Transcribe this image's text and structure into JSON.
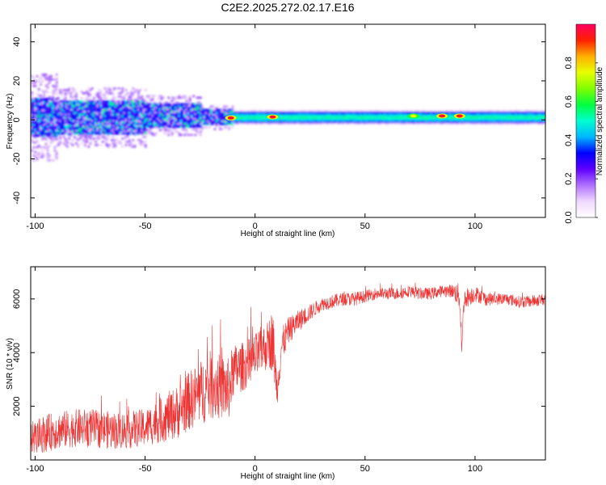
{
  "title": "C2E2.2025.272.02.17.E16",
  "chart_data": [
    {
      "type": "heatmap",
      "xlabel": "Height of straight line (km)",
      "ylabel": "Frequency (Hz)",
      "xlim": [
        -102,
        132
      ],
      "ylim": [
        -50,
        49
      ],
      "x_ticks": [
        -100,
        -50,
        0,
        50,
        100
      ],
      "y_ticks": [
        -40,
        -20,
        0,
        20,
        40
      ],
      "grid": false,
      "colorbar": {
        "label": "Normalized spectral amplitude",
        "range": [
          0,
          1
        ],
        "ticks": [
          0.0,
          0.2,
          0.4,
          0.6,
          0.8
        ],
        "colormap": [
          "#ffffff",
          "#f0d8ff",
          "#b070ff",
          "#6000ff",
          "#0000ff",
          "#00b8ff",
          "#00ffd0",
          "#00ff40",
          "#80ff00",
          "#e8ff00",
          "#ffb000",
          "#ff2000",
          "#ff0060"
        ]
      },
      "bands": [
        {
          "x": [
            -102,
            -90
          ],
          "center": 1,
          "halfwidth_strong": 10,
          "halfwidth_faint": 22
        },
        {
          "x": [
            -90,
            -50
          ],
          "center": 1,
          "halfwidth_strong": 9,
          "halfwidth_faint": 15
        },
        {
          "x": [
            -50,
            -25
          ],
          "center": 2,
          "halfwidth_strong": 6,
          "halfwidth_faint": 10
        },
        {
          "x": [
            -25,
            -10
          ],
          "center": 1,
          "halfwidth_strong": 4,
          "halfwidth_faint": 6
        },
        {
          "x": [
            -10,
            132
          ],
          "center": 1,
          "halfwidth_strong": 3,
          "halfwidth_faint": 4
        }
      ],
      "hotspots": [
        {
          "x": -11,
          "y": 1,
          "level": 0.95
        },
        {
          "x": 8,
          "y": 1.5,
          "level": 0.95
        },
        {
          "x": 72,
          "y": 2,
          "level": 0.75
        },
        {
          "x": 85,
          "y": 2,
          "level": 0.95
        },
        {
          "x": 93,
          "y": 2,
          "level": 0.95
        }
      ]
    },
    {
      "type": "line",
      "xlabel": "Height of straight line (km)",
      "ylabel": "SNR (10 * v/v)",
      "xlim": [
        -102,
        132
      ],
      "ylim": [
        0,
        7200
      ],
      "x_ticks": [
        -100,
        -50,
        0,
        50,
        100
      ],
      "y_ticks": [
        2000,
        4000,
        6000
      ],
      "grid": false,
      "series": [
        {
          "color": "#ee3333",
          "x": [
            -102,
            -95,
            -90,
            -85,
            -80,
            -75,
            -70,
            -65,
            -60,
            -55,
            -50,
            -45,
            -40,
            -35,
            -30,
            -25,
            -20,
            -15,
            -12,
            -10,
            -5,
            0,
            3,
            6,
            8,
            10,
            12,
            15,
            20,
            25,
            30,
            35,
            40,
            45,
            50,
            55,
            60,
            65,
            70,
            75,
            80,
            85,
            90,
            93,
            94,
            95,
            100,
            105,
            110,
            115,
            120,
            125,
            132
          ],
          "y": [
            800,
            1000,
            1100,
            1150,
            1200,
            1200,
            1150,
            1100,
            1100,
            1150,
            1200,
            1400,
            1600,
            1800,
            2200,
            2500,
            2800,
            2700,
            2600,
            3300,
            3500,
            3800,
            4100,
            4300,
            4500,
            2600,
            4200,
            4800,
            5200,
            5500,
            5800,
            5900,
            6000,
            6000,
            6100,
            6200,
            6200,
            6200,
            6300,
            6200,
            6200,
            6300,
            6300,
            6100,
            4200,
            6000,
            6200,
            6000,
            6000,
            6000,
            5900,
            5900,
            6000
          ],
          "noise": [
            600,
            700,
            700,
            700,
            700,
            700,
            700,
            700,
            700,
            700,
            700,
            800,
            900,
            1000,
            1100,
            1200,
            1300,
            1200,
            1200,
            1000,
            900,
            900,
            900,
            900,
            1200,
            600,
            700,
            500,
            400,
            300,
            250,
            250,
            250,
            250,
            220,
            220,
            220,
            220,
            220,
            220,
            220,
            220,
            250,
            500,
            300,
            400,
            300,
            250,
            220,
            220,
            220,
            220,
            220
          ]
        }
      ]
    }
  ]
}
